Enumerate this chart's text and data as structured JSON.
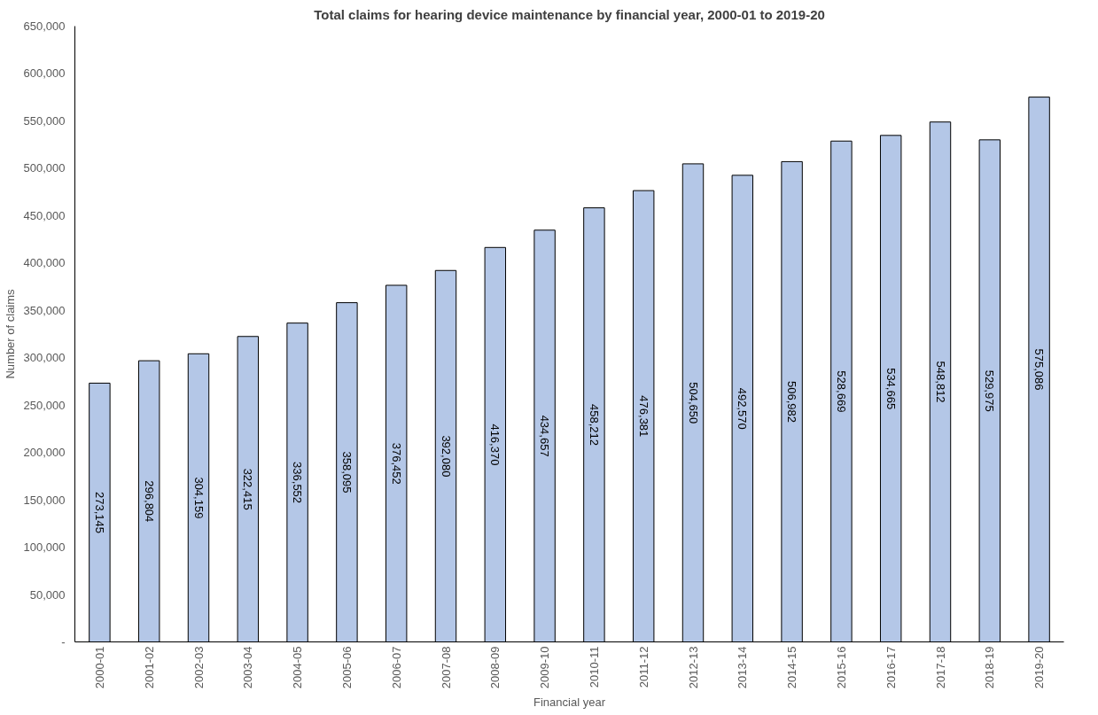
{
  "chart_data": {
    "type": "bar",
    "title": "Total claims for hearing device maintenance by financial year, 2000-01 to 2019-20",
    "xlabel": "Financial year",
    "ylabel": "Number of claims",
    "categories": [
      "2000-01",
      "2001-02",
      "2002-03",
      "2003-04",
      "2004-05",
      "2005-06",
      "2006-07",
      "2007-08",
      "2008-09",
      "2009-10",
      "2010-11",
      "2011-12",
      "2012-13",
      "2013-14",
      "2014-15",
      "2015-16",
      "2016-17",
      "2017-18",
      "2018-19",
      "2019-20"
    ],
    "values": [
      273145,
      296804,
      304159,
      322415,
      336552,
      358095,
      376452,
      392080,
      416370,
      434657,
      458212,
      476381,
      504650,
      492570,
      506982,
      528669,
      534665,
      548812,
      529975,
      575086
    ],
    "value_labels": [
      "273,145",
      "296,804",
      "304,159",
      "322,415",
      "336,552",
      "358,095",
      "376,452",
      "392,080",
      "416,370",
      "434,657",
      "458,212",
      "476,381",
      "504,650",
      "492,570",
      "506,982",
      "528,669",
      "534,665",
      "548,812",
      "529,975",
      "575,086"
    ],
    "color": "#b4c7e7",
    "ylim": [
      0,
      650000
    ],
    "yticks": [
      {
        "value": 0,
        "label": "-"
      },
      {
        "value": 50000,
        "label": "50,000"
      },
      {
        "value": 100000,
        "label": "100,000"
      },
      {
        "value": 150000,
        "label": "150,000"
      },
      {
        "value": 200000,
        "label": "200,000"
      },
      {
        "value": 250000,
        "label": "250,000"
      },
      {
        "value": 300000,
        "label": "300,000"
      },
      {
        "value": 350000,
        "label": "350,000"
      },
      {
        "value": 400000,
        "label": "400,000"
      },
      {
        "value": 450000,
        "label": "450,000"
      },
      {
        "value": 500000,
        "label": "500,000"
      },
      {
        "value": 550000,
        "label": "550,000"
      },
      {
        "value": 600000,
        "label": "600,000"
      },
      {
        "value": 650000,
        "label": "650,000"
      }
    ],
    "grid": false
  }
}
